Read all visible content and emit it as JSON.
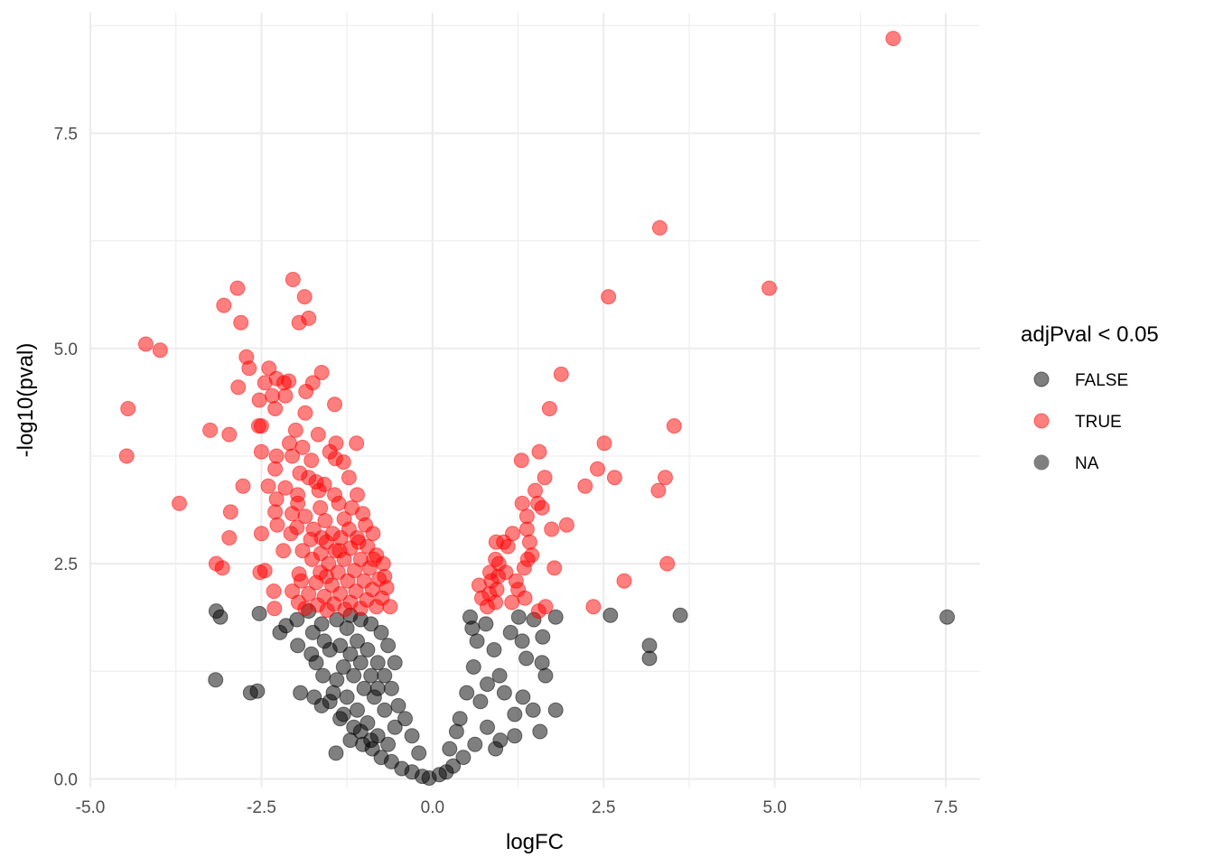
{
  "chart_data": {
    "type": "scatter",
    "title": "",
    "xlabel": "logFC",
    "ylabel": "-log10(pval)",
    "xlim": [
      -5.0,
      8.0
    ],
    "ylim": [
      -0.1,
      8.9
    ],
    "x_ticks": [
      "-5.0",
      "-2.5",
      "0.0",
      "2.5",
      "5.0",
      "7.5"
    ],
    "x_tick_values": [
      -5.0,
      -2.5,
      0.0,
      2.5,
      5.0,
      7.5
    ],
    "y_ticks": [
      "0.0",
      "2.5",
      "5.0",
      "7.5"
    ],
    "y_tick_values": [
      0.0,
      2.5,
      5.0,
      7.5
    ],
    "grid": true,
    "legend": {
      "title": "adjPval < 0.05",
      "placement": "right",
      "entries": [
        {
          "label": "FALSE",
          "color": "#000000"
        },
        {
          "label": "TRUE",
          "color": "#ff0000"
        },
        {
          "label": "NA",
          "color": "#7f7f7f"
        }
      ]
    },
    "point_opacity": 0.5,
    "series": [
      {
        "name": "TRUE",
        "color": "#ff0000",
        "points": [
          [
            6.73,
            8.6
          ],
          [
            3.32,
            6.4
          ],
          [
            4.92,
            5.7
          ],
          [
            2.57,
            5.6
          ],
          [
            1.88,
            4.7
          ],
          [
            1.71,
            4.3
          ],
          [
            3.53,
            4.1
          ],
          [
            2.51,
            3.9
          ],
          [
            1.56,
            3.8
          ],
          [
            1.3,
            3.7
          ],
          [
            2.41,
            3.6
          ],
          [
            2.66,
            3.5
          ],
          [
            3.4,
            3.5
          ],
          [
            1.64,
            3.5
          ],
          [
            2.23,
            3.4
          ],
          [
            1.5,
            3.35
          ],
          [
            3.3,
            3.35
          ],
          [
            1.31,
            3.2
          ],
          [
            1.54,
            3.2
          ],
          [
            1.6,
            3.15
          ],
          [
            1.38,
            3.05
          ],
          [
            1.96,
            2.95
          ],
          [
            1.74,
            2.9
          ],
          [
            1.38,
            2.9
          ],
          [
            1.17,
            2.85
          ],
          [
            1.42,
            2.75
          ],
          [
            0.93,
            2.75
          ],
          [
            1.04,
            2.75
          ],
          [
            1.1,
            2.7
          ],
          [
            1.45,
            2.6
          ],
          [
            1.39,
            2.55
          ],
          [
            0.92,
            2.55
          ],
          [
            0.97,
            2.5
          ],
          [
            3.43,
            2.5
          ],
          [
            1.78,
            2.45
          ],
          [
            1.34,
            2.45
          ],
          [
            0.84,
            2.4
          ],
          [
            0.96,
            2.35
          ],
          [
            1.22,
            2.3
          ],
          [
            2.8,
            2.3
          ],
          [
            0.68,
            2.25
          ],
          [
            0.94,
            2.2
          ],
          [
            1.25,
            2.2
          ],
          [
            0.83,
            2.15
          ],
          [
            1.35,
            2.1
          ],
          [
            0.92,
            2.05
          ],
          [
            1.16,
            2.05
          ],
          [
            2.35,
            2.0
          ],
          [
            1.65,
            2.0
          ],
          [
            0.8,
            2.0
          ],
          [
            1.55,
            1.95
          ],
          [
            0.72,
            2.1
          ],
          [
            0.86,
            2.3
          ],
          [
            1.07,
            2.4
          ],
          [
            -2.04,
            5.8
          ],
          [
            -1.87,
            5.6
          ],
          [
            -1.81,
            5.35
          ],
          [
            -1.95,
            5.3
          ],
          [
            -2.85,
            5.7
          ],
          [
            -3.05,
            5.5
          ],
          [
            -2.8,
            5.3
          ],
          [
            -4.19,
            5.05
          ],
          [
            -3.98,
            4.98
          ],
          [
            -2.72,
            4.9
          ],
          [
            -2.68,
            4.77
          ],
          [
            -2.39,
            4.77
          ],
          [
            -2.84,
            4.55
          ],
          [
            -2.45,
            4.6
          ],
          [
            -2.28,
            4.65
          ],
          [
            -2.17,
            4.6
          ],
          [
            -2.1,
            4.62
          ],
          [
            -1.75,
            4.6
          ],
          [
            -1.62,
            4.72
          ],
          [
            -1.85,
            4.5
          ],
          [
            -2.34,
            4.45
          ],
          [
            -2.53,
            4.4
          ],
          [
            -2.15,
            4.45
          ],
          [
            -1.43,
            4.35
          ],
          [
            -1.86,
            4.25
          ],
          [
            -4.45,
            4.3
          ],
          [
            -2.3,
            4.3
          ],
          [
            -2.54,
            4.1
          ],
          [
            -2.0,
            4.05
          ],
          [
            -1.67,
            4.0
          ],
          [
            -1.41,
            3.9
          ],
          [
            -1.11,
            3.9
          ],
          [
            -3.25,
            4.05
          ],
          [
            -2.97,
            4.0
          ],
          [
            -2.5,
            4.1
          ],
          [
            -2.09,
            3.9
          ],
          [
            -1.9,
            3.85
          ],
          [
            -1.5,
            3.8
          ],
          [
            -4.47,
            3.75
          ],
          [
            -2.5,
            3.8
          ],
          [
            -2.28,
            3.75
          ],
          [
            -2.05,
            3.75
          ],
          [
            -1.77,
            3.7
          ],
          [
            -1.42,
            3.72
          ],
          [
            -1.3,
            3.68
          ],
          [
            -2.3,
            3.6
          ],
          [
            -1.94,
            3.55
          ],
          [
            -1.81,
            3.5
          ],
          [
            -1.7,
            3.45
          ],
          [
            -1.58,
            3.42
          ],
          [
            -1.22,
            3.5
          ],
          [
            -2.77,
            3.4
          ],
          [
            -2.4,
            3.4
          ],
          [
            -2.15,
            3.38
          ],
          [
            -1.97,
            3.3
          ],
          [
            -1.66,
            3.35
          ],
          [
            -1.43,
            3.3
          ],
          [
            -1.1,
            3.3
          ],
          [
            -2.28,
            3.25
          ],
          [
            -1.97,
            3.2
          ],
          [
            -1.64,
            3.15
          ],
          [
            -1.37,
            3.2
          ],
          [
            -1.18,
            3.15
          ],
          [
            -3.7,
            3.2
          ],
          [
            -2.95,
            3.1
          ],
          [
            -2.3,
            3.1
          ],
          [
            -2.05,
            3.08
          ],
          [
            -1.86,
            3.05
          ],
          [
            -1.57,
            3.0
          ],
          [
            -1.29,
            3.02
          ],
          [
            -1.02,
            3.08
          ],
          [
            -2.27,
            2.95
          ],
          [
            -1.98,
            2.92
          ],
          [
            -1.74,
            2.9
          ],
          [
            -1.46,
            2.85
          ],
          [
            -1.22,
            2.9
          ],
          [
            -0.98,
            2.95
          ],
          [
            -2.5,
            2.85
          ],
          [
            -2.07,
            2.85
          ],
          [
            -1.78,
            2.78
          ],
          [
            -1.55,
            2.75
          ],
          [
            -1.34,
            2.8
          ],
          [
            -1.1,
            2.8
          ],
          [
            -0.87,
            2.85
          ],
          [
            -2.97,
            2.8
          ],
          [
            -2.18,
            2.65
          ],
          [
            -1.9,
            2.65
          ],
          [
            -1.63,
            2.62
          ],
          [
            -1.42,
            2.65
          ],
          [
            -1.2,
            2.68
          ],
          [
            -0.95,
            2.7
          ],
          [
            -1.76,
            2.55
          ],
          [
            -1.52,
            2.5
          ],
          [
            -1.29,
            2.55
          ],
          [
            -1.05,
            2.55
          ],
          [
            -0.82,
            2.6
          ],
          [
            -3.16,
            2.5
          ],
          [
            -3.07,
            2.45
          ],
          [
            -2.52,
            2.4
          ],
          [
            -2.45,
            2.42
          ],
          [
            -1.95,
            2.38
          ],
          [
            -1.64,
            2.4
          ],
          [
            -1.38,
            2.4
          ],
          [
            -1.14,
            2.42
          ],
          [
            -0.92,
            2.45
          ],
          [
            -0.72,
            2.5
          ],
          [
            -1.92,
            2.3
          ],
          [
            -1.7,
            2.28
          ],
          [
            -1.47,
            2.25
          ],
          [
            -1.24,
            2.3
          ],
          [
            -1.0,
            2.3
          ],
          [
            -0.78,
            2.32
          ],
          [
            -2.32,
            2.18
          ],
          [
            -2.05,
            2.18
          ],
          [
            -1.81,
            2.15
          ],
          [
            -1.58,
            2.12
          ],
          [
            -1.35,
            2.15
          ],
          [
            -1.12,
            2.18
          ],
          [
            -0.88,
            2.2
          ],
          [
            -0.67,
            2.22
          ],
          [
            -2.31,
            1.98
          ],
          [
            -1.96,
            2.05
          ],
          [
            -1.68,
            2.02
          ],
          [
            -1.44,
            2.03
          ],
          [
            -1.2,
            2.05
          ],
          [
            -0.96,
            2.08
          ],
          [
            -0.74,
            2.1
          ],
          [
            -1.86,
            1.98
          ],
          [
            -1.54,
            1.96
          ],
          [
            -1.28,
            1.97
          ],
          [
            -1.05,
            1.98
          ],
          [
            -0.82,
            2.0
          ],
          [
            -0.62,
            2.0
          ],
          [
            -1.62,
            2.8
          ],
          [
            -1.36,
            2.65
          ],
          [
            -1.08,
            2.75
          ],
          [
            -0.86,
            2.55
          ],
          [
            -1.55,
            2.35
          ],
          [
            -0.7,
            2.35
          ]
        ]
      },
      {
        "name": "FALSE",
        "color": "#000000",
        "points": [
          [
            7.52,
            1.88
          ],
          [
            3.62,
            1.9
          ],
          [
            2.6,
            1.9
          ],
          [
            3.17,
            1.55
          ],
          [
            3.17,
            1.4
          ],
          [
            1.8,
            1.88
          ],
          [
            1.61,
            1.65
          ],
          [
            1.48,
            1.85
          ],
          [
            1.26,
            1.88
          ],
          [
            1.14,
            1.7
          ],
          [
            1.31,
            1.6
          ],
          [
            1.37,
            1.4
          ],
          [
            1.6,
            1.35
          ],
          [
            1.65,
            1.2
          ],
          [
            1.8,
            0.8
          ],
          [
            1.47,
            0.8
          ],
          [
            1.32,
            0.95
          ],
          [
            1.2,
            0.75
          ],
          [
            1.57,
            0.55
          ],
          [
            1.2,
            0.5
          ],
          [
            0.99,
            0.45
          ],
          [
            0.92,
            0.35
          ],
          [
            0.8,
            0.6
          ],
          [
            0.62,
            0.4
          ],
          [
            0.45,
            0.25
          ],
          [
            0.3,
            0.15
          ],
          [
            0.2,
            0.08
          ],
          [
            0.1,
            0.05
          ],
          [
            0.55,
            1.88
          ],
          [
            0.78,
            1.8
          ],
          [
            0.9,
            1.5
          ],
          [
            0.98,
            1.2
          ],
          [
            1.05,
            1.0
          ],
          [
            0.6,
            1.3
          ],
          [
            0.5,
            1.0
          ],
          [
            0.4,
            0.7
          ],
          [
            0.35,
            0.55
          ],
          [
            0.25,
            0.35
          ],
          [
            0.7,
            0.9
          ],
          [
            0.8,
            1.1
          ],
          [
            0.65,
            1.6
          ],
          [
            0.58,
            1.75
          ],
          [
            -3.16,
            1.95
          ],
          [
            -3.1,
            1.88
          ],
          [
            -2.53,
            1.92
          ],
          [
            -2.23,
            1.7
          ],
          [
            -2.14,
            1.78
          ],
          [
            -1.98,
            1.85
          ],
          [
            -1.81,
            1.95
          ],
          [
            -1.62,
            1.8
          ],
          [
            -1.75,
            1.7
          ],
          [
            -1.97,
            1.55
          ],
          [
            -1.77,
            1.45
          ],
          [
            -1.58,
            1.6
          ],
          [
            -1.7,
            1.35
          ],
          [
            -3.17,
            1.15
          ],
          [
            -2.66,
            1.0
          ],
          [
            -2.56,
            1.02
          ],
          [
            -1.93,
            1.0
          ],
          [
            -1.73,
            0.95
          ],
          [
            -1.62,
            0.85
          ],
          [
            -1.5,
            0.9
          ],
          [
            -1.41,
            0.3
          ],
          [
            -1.3,
            0.75
          ],
          [
            -1.15,
            0.6
          ],
          [
            -1.02,
            0.4
          ],
          [
            -0.88,
            0.35
          ],
          [
            -0.75,
            0.25
          ],
          [
            -0.6,
            0.2
          ],
          [
            -0.45,
            0.12
          ],
          [
            -0.3,
            0.08
          ],
          [
            -0.15,
            0.03
          ],
          [
            -0.05,
            0.01
          ],
          [
            -1.4,
            1.85
          ],
          [
            -1.25,
            1.75
          ],
          [
            -1.1,
            1.6
          ],
          [
            -0.95,
            1.5
          ],
          [
            -0.8,
            1.35
          ],
          [
            -0.7,
            1.2
          ],
          [
            -0.6,
            1.05
          ],
          [
            -0.5,
            0.85
          ],
          [
            -0.4,
            0.7
          ],
          [
            -0.3,
            0.5
          ],
          [
            -0.2,
            0.3
          ],
          [
            -1.2,
            1.9
          ],
          [
            -1.05,
            1.85
          ],
          [
            -0.9,
            1.8
          ],
          [
            -0.75,
            1.7
          ],
          [
            -0.65,
            1.55
          ],
          [
            -0.55,
            1.35
          ],
          [
            -1.3,
            1.3
          ],
          [
            -1.15,
            1.2
          ],
          [
            -1.0,
            1.05
          ],
          [
            -0.85,
            0.95
          ],
          [
            -0.7,
            0.8
          ],
          [
            -0.55,
            0.6
          ],
          [
            -1.35,
            1.55
          ],
          [
            -1.2,
            1.45
          ],
          [
            -1.05,
            1.35
          ],
          [
            -0.9,
            1.2
          ],
          [
            -0.8,
            1.05
          ],
          [
            -1.5,
            1.5
          ],
          [
            -1.4,
            1.15
          ],
          [
            -1.25,
            0.95
          ],
          [
            -1.1,
            0.8
          ],
          [
            -0.95,
            0.65
          ],
          [
            -0.8,
            0.5
          ],
          [
            -0.65,
            0.4
          ],
          [
            -1.6,
            1.2
          ],
          [
            -1.45,
            1.0
          ],
          [
            -1.35,
            0.7
          ],
          [
            -1.2,
            0.45
          ],
          [
            -1.05,
            0.55
          ],
          [
            -0.9,
            0.45
          ]
        ]
      }
    ]
  }
}
